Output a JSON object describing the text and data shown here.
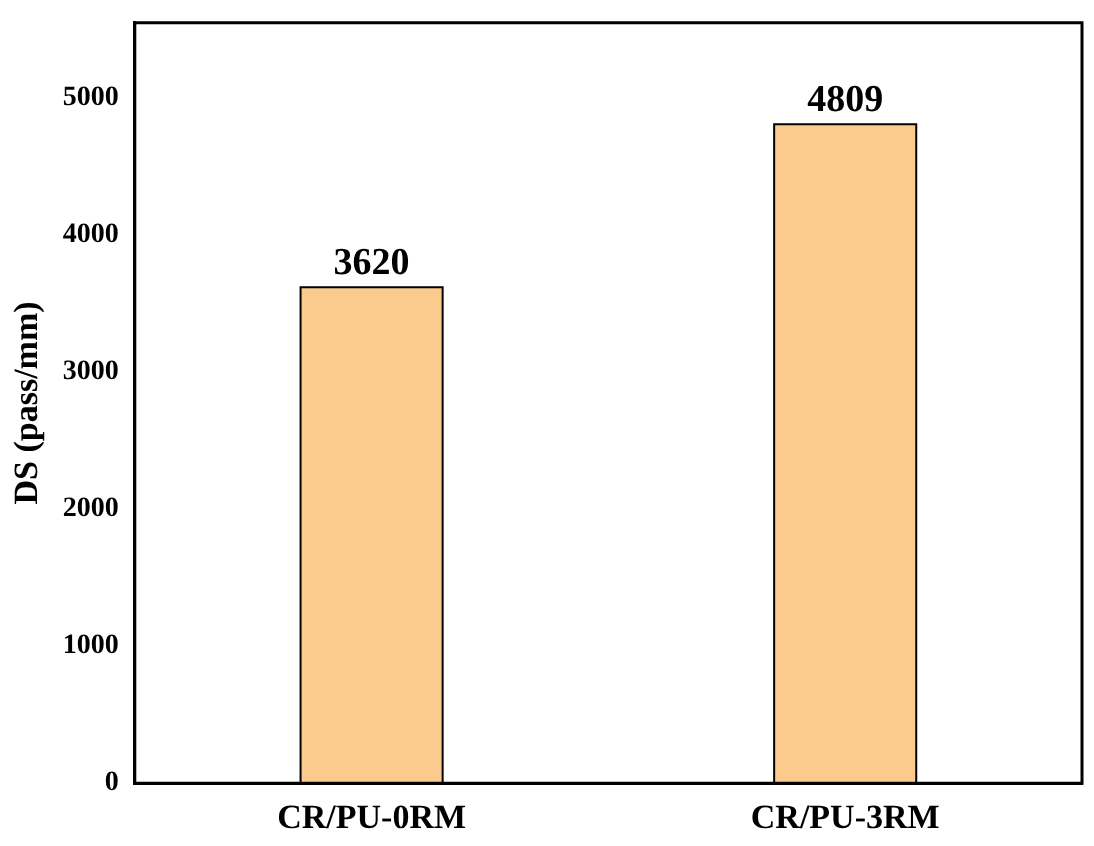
{
  "chart_data": {
    "type": "bar",
    "ylabel": "DS (pass/mm)",
    "categories": [
      "CR/PU-0RM",
      "CR/PU-3RM"
    ],
    "values": [
      3620,
      4809
    ],
    "color": "#fbcb8e",
    "ylim": [
      0,
      5550
    ],
    "yticks": [
      0,
      1000,
      2000,
      3000,
      4000,
      5000
    ],
    "data_labels": true,
    "grid": false,
    "legend": false
  }
}
